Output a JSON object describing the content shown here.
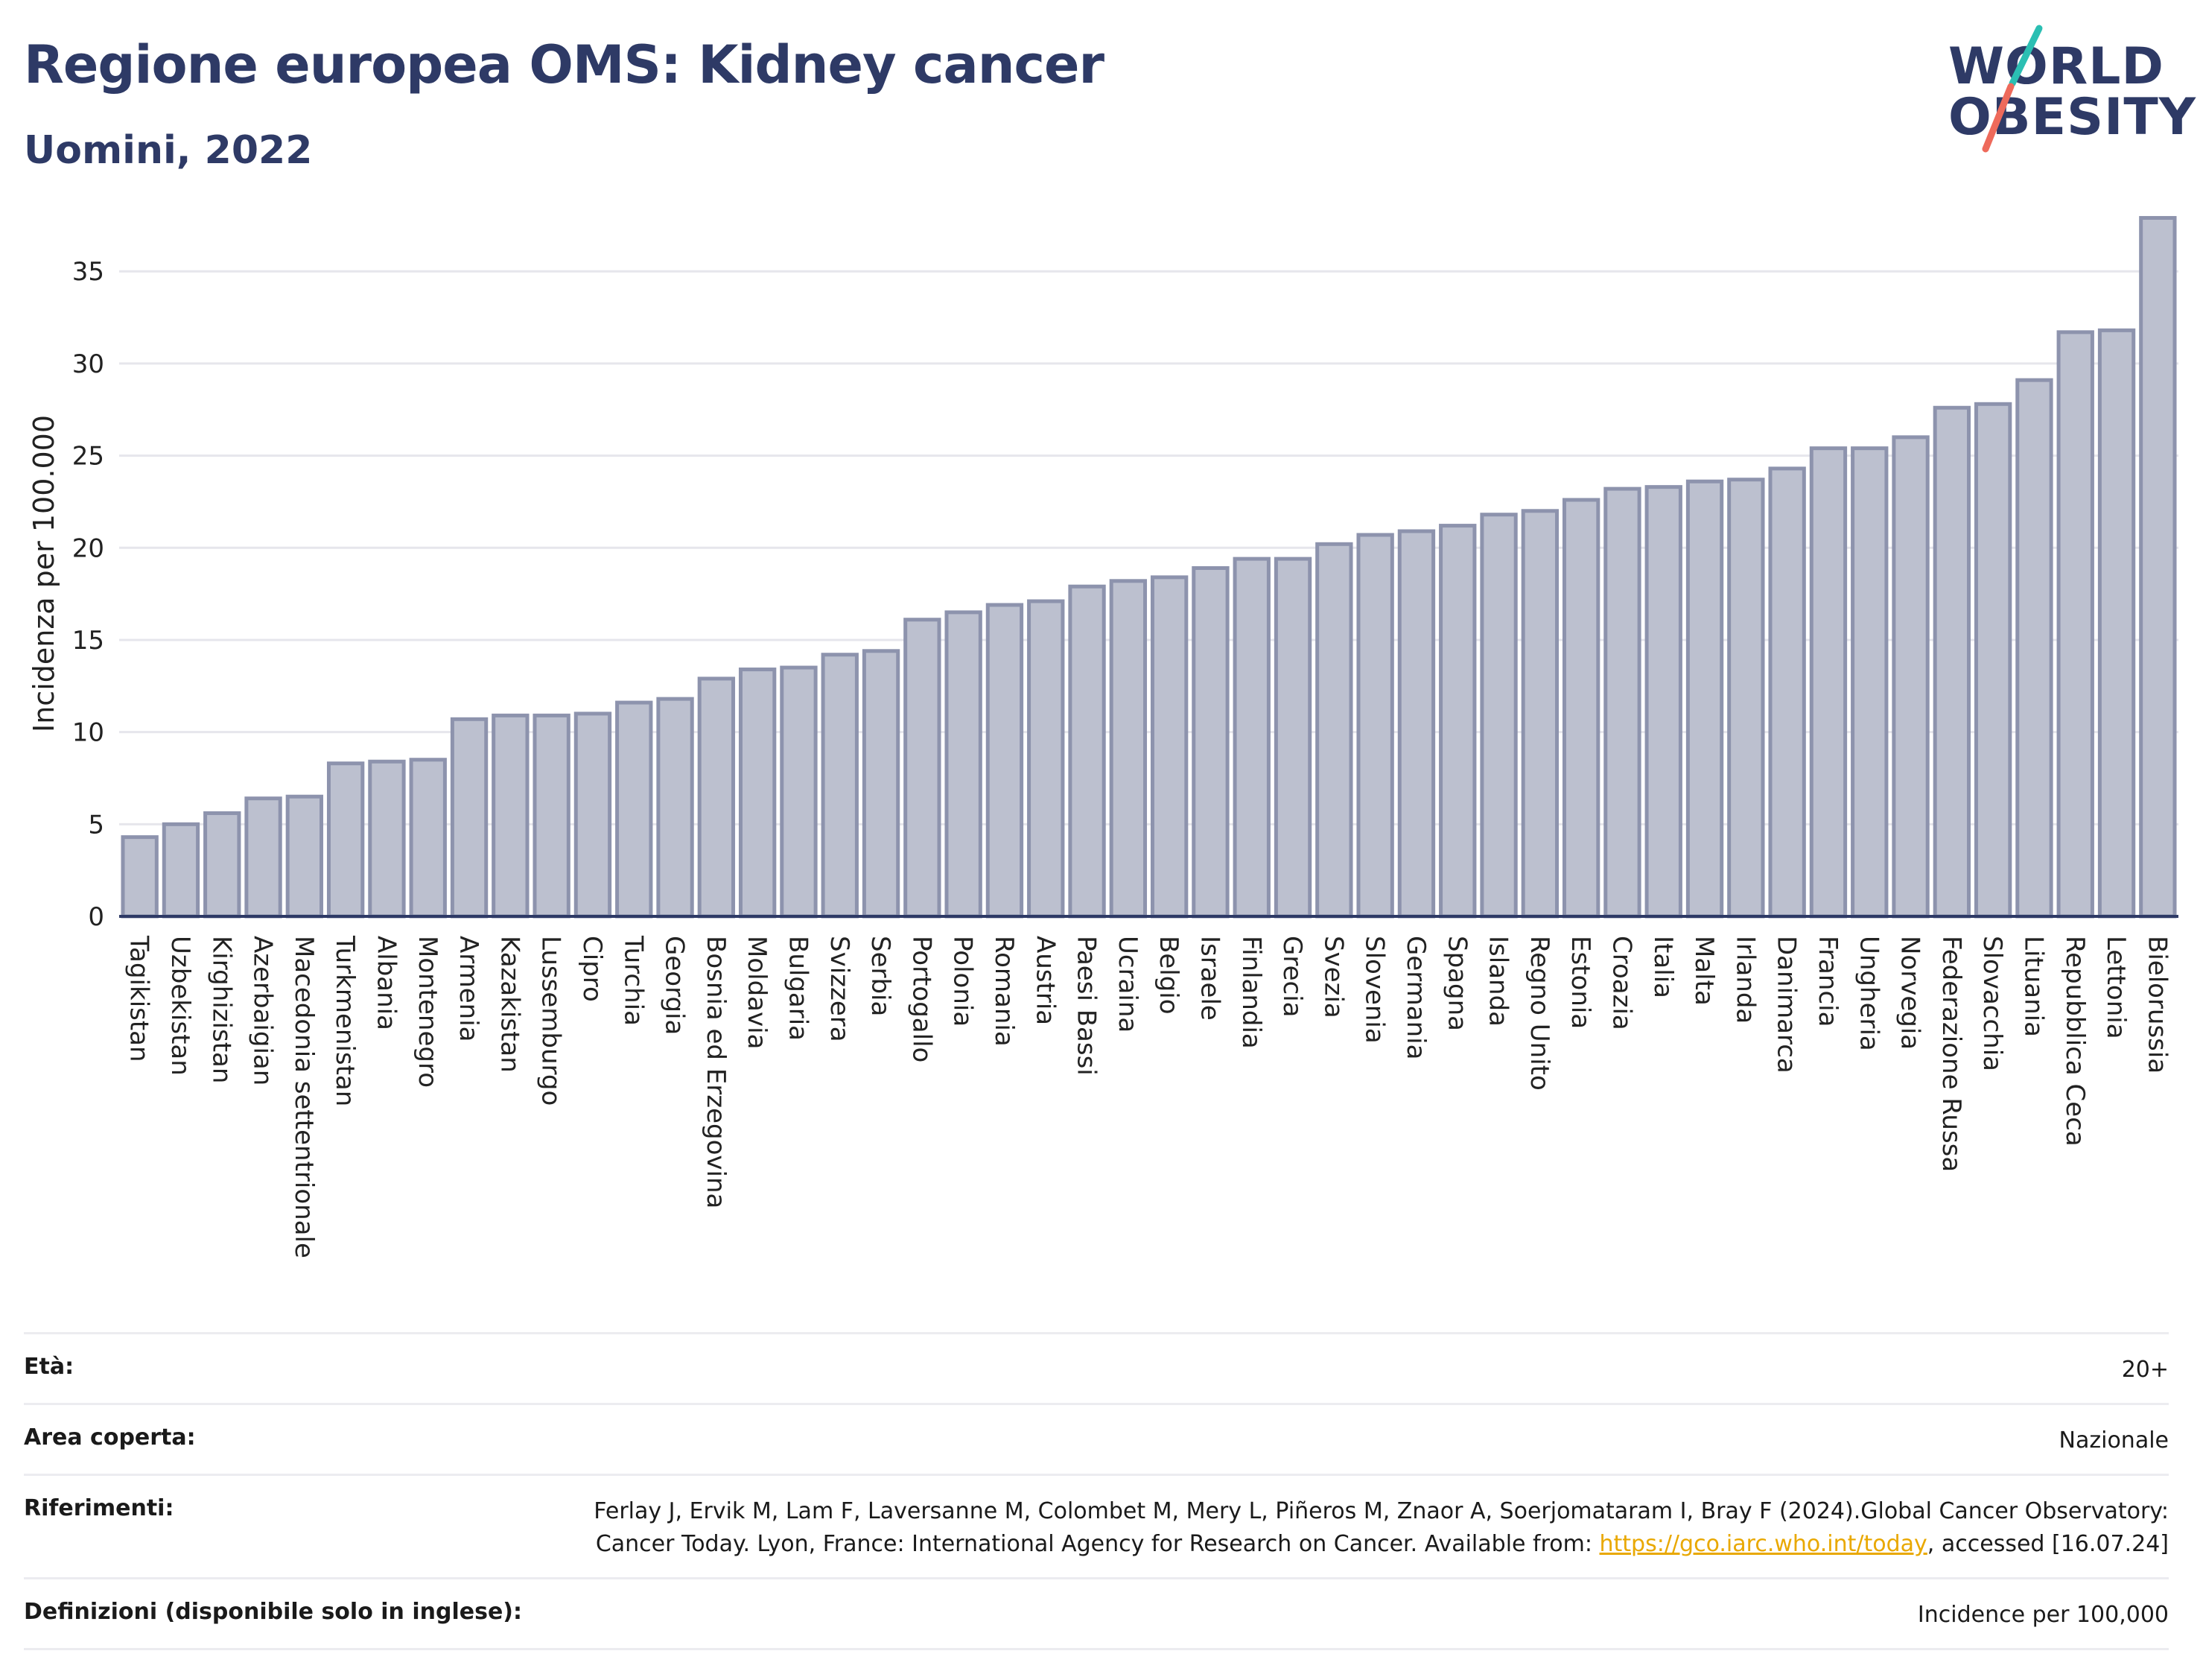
{
  "header": {
    "title": "Regione europea OMS: Kidney cancer",
    "subtitle": "Uomini, 2022"
  },
  "logo": {
    "line1": "WORLD",
    "line2": "OBESITY"
  },
  "colors": {
    "title": "#2e3a66",
    "bar_fill": "#bcc0cf",
    "bar_stroke": "#8d93ad",
    "grid": "#e6e6ec",
    "logo_teal": "#2bbfb3",
    "logo_coral": "#ee6a5b",
    "link": "#e9a800"
  },
  "chart_data": {
    "type": "bar",
    "ylabel": "Incidenza per 100.000",
    "xlabel": "",
    "ylim": [
      0,
      38
    ],
    "yticks": [
      0,
      5,
      10,
      15,
      20,
      25,
      30,
      35
    ],
    "grid": true,
    "categories": [
      "Tagikistan",
      "Uzbekistan",
      "Kirghizistan",
      "Azerbaigian",
      "Macedonia settentrionale",
      "Turkmenistan",
      "Albania",
      "Montenegro",
      "Armenia",
      "Kazakistan",
      "Lussemburgo",
      "Cipro",
      "Turchia",
      "Georgia",
      "Bosnia ed Erzegovina",
      "Moldavia",
      "Bulgaria",
      "Svizzera",
      "Serbia",
      "Portogallo",
      "Polonia",
      "Romania",
      "Austria",
      "Paesi Bassi",
      "Ucraina",
      "Belgio",
      "Israele",
      "Finlandia",
      "Grecia",
      "Svezia",
      "Slovenia",
      "Germania",
      "Spagna",
      "Islanda",
      "Regno Unito",
      "Estonia",
      "Croazia",
      "Italia",
      "Malta",
      "Irlanda",
      "Danimarca",
      "Francia",
      "Ungheria",
      "Norvegia",
      "Federazione Russa",
      "Slovacchia",
      "Lituania",
      "Repubblica Ceca",
      "Lettonia",
      "Bielorussia"
    ],
    "values": [
      4.3,
      5.0,
      5.6,
      6.4,
      6.5,
      8.3,
      8.4,
      8.5,
      10.7,
      10.9,
      10.9,
      11.0,
      11.6,
      11.8,
      12.9,
      13.4,
      13.5,
      14.2,
      14.4,
      16.1,
      16.5,
      16.9,
      17.1,
      17.9,
      18.2,
      18.4,
      18.9,
      19.4,
      19.4,
      20.2,
      20.7,
      20.9,
      21.2,
      21.8,
      22.0,
      22.6,
      23.2,
      23.3,
      23.6,
      23.7,
      24.3,
      25.4,
      25.4,
      26.0,
      27.6,
      27.8,
      29.1,
      31.7,
      31.8,
      37.9
    ]
  },
  "meta": {
    "age_label": "Età:",
    "age_value": "20+",
    "area_label": "Area coperta:",
    "area_value": "Nazionale",
    "refs_label": "Riferimenti:",
    "refs_text": "Ferlay J, Ervik M, Lam F, Laversanne M, Colombet M, Mery L, Piñeros M, Znaor A, Soerjomataram I, Bray F (2024).Global Cancer Observatory: Cancer Today. Lyon, France: International Agency for Research on Cancer. Available from:",
    "refs_link": "https://gco.iarc.who.int/today",
    "refs_after": ", accessed [16.07.24]",
    "defs_label": "Definizioni (disponibile solo in inglese):",
    "defs_value": "Incidence per 100,000"
  }
}
